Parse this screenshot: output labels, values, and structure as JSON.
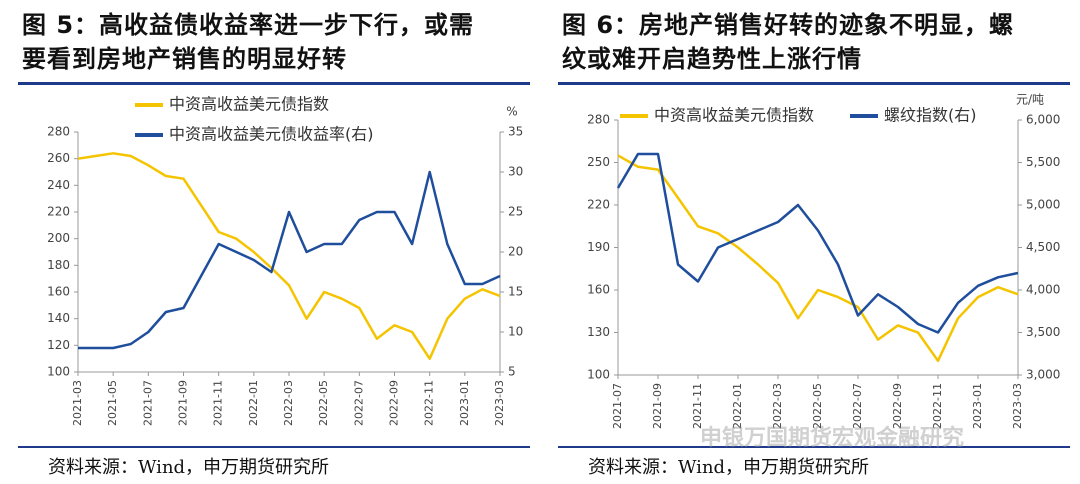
{
  "chart_data": [
    {
      "type": "line",
      "title": "图 5：高收益债收益率进一步下行，或需要看到房地产销售的明显好转",
      "source": "资料来源：Wind，申万期货研究所",
      "x": [
        "2021-03",
        "2021-04",
        "2021-05",
        "2021-06",
        "2021-07",
        "2021-08",
        "2021-09",
        "2021-10",
        "2021-11",
        "2021-12",
        "2022-01",
        "2022-02",
        "2022-03",
        "2022-04",
        "2022-05",
        "2022-06",
        "2022-07",
        "2022-08",
        "2022-09",
        "2022-10",
        "2022-11",
        "2022-12",
        "2023-01",
        "2023-02",
        "2023-03"
      ],
      "xticks": [
        "2021-03",
        "2021-05",
        "2021-07",
        "2021-09",
        "2021-11",
        "2022-01",
        "2022-03",
        "2022-05",
        "2022-07",
        "2022-09",
        "2022-11",
        "2023-01",
        "2023-03"
      ],
      "ylim": [
        100,
        280
      ],
      "yticks": [
        100,
        120,
        140,
        160,
        180,
        200,
        220,
        240,
        260,
        280
      ],
      "y2lim": [
        5,
        35
      ],
      "y2ticks": [
        5,
        10,
        15,
        20,
        25,
        30,
        35
      ],
      "y2_unit": "%",
      "series": [
        {
          "name": "中资高收益美元债指数",
          "color": "#f5c400",
          "values": [
            260,
            262,
            264,
            262,
            255,
            247,
            245,
            225,
            205,
            200,
            190,
            178,
            165,
            140,
            160,
            155,
            148,
            125,
            135,
            130,
            110,
            140,
            155,
            162,
            157
          ]
        },
        {
          "name": "中资高收益美元债收益率(右)",
          "color": "#1f4e9c",
          "axis": "y2",
          "values": [
            8,
            8,
            8,
            8.5,
            10,
            12.5,
            13,
            17,
            21,
            20,
            19,
            17.5,
            25,
            20,
            21,
            21,
            24,
            25,
            25,
            21,
            30,
            21,
            16,
            16,
            17
          ]
        }
      ]
    },
    {
      "type": "line",
      "title": "图 6：房地产销售好转的迹象不明显，螺纹或难开启趋势性上涨行情",
      "source": "资料来源：Wind，申万期货研究所",
      "watermark": "申银万国期货宏观金融研究",
      "x": [
        "2021-07",
        "2021-08",
        "2021-09",
        "2021-10",
        "2021-11",
        "2021-12",
        "2022-01",
        "2022-02",
        "2022-03",
        "2022-04",
        "2022-05",
        "2022-06",
        "2022-07",
        "2022-08",
        "2022-09",
        "2022-10",
        "2022-11",
        "2022-12",
        "2023-01",
        "2023-02",
        "2023-03"
      ],
      "xticks": [
        "2021-07",
        "2021-09",
        "2021-11",
        "2022-01",
        "2022-03",
        "2022-05",
        "2022-07",
        "2022-09",
        "2022-11",
        "2023-01",
        "2023-03"
      ],
      "ylim": [
        100,
        280
      ],
      "yticks": [
        100,
        130,
        160,
        190,
        220,
        250,
        280
      ],
      "y2lim": [
        3000,
        6000
      ],
      "y2ticks": [
        {
          "value": 3000,
          "label": "3,000"
        },
        {
          "value": 3500,
          "label": "3,500"
        },
        {
          "value": 4000,
          "label": "4,000"
        },
        {
          "value": 4500,
          "label": "4,500"
        },
        {
          "value": 5000,
          "label": "5,000"
        },
        {
          "value": 5500,
          "label": "5,500"
        },
        {
          "value": 6000,
          "label": "6,000"
        }
      ],
      "y2_unit": "元/吨",
      "series": [
        {
          "name": "中资高收益美元债指数",
          "color": "#f5c400",
          "values": [
            255,
            247,
            245,
            225,
            205,
            200,
            190,
            178,
            165,
            140,
            160,
            155,
            148,
            125,
            135,
            130,
            110,
            140,
            155,
            162,
            157
          ]
        },
        {
          "name": "螺纹指数(右)",
          "color": "#1f4e9c",
          "axis": "y2",
          "values": [
            5200,
            5600,
            5600,
            4300,
            4100,
            4500,
            4600,
            4700,
            4800,
            5000,
            4700,
            4300,
            3700,
            3950,
            3800,
            3600,
            3500,
            3850,
            4050,
            4150,
            4200
          ]
        }
      ]
    }
  ]
}
